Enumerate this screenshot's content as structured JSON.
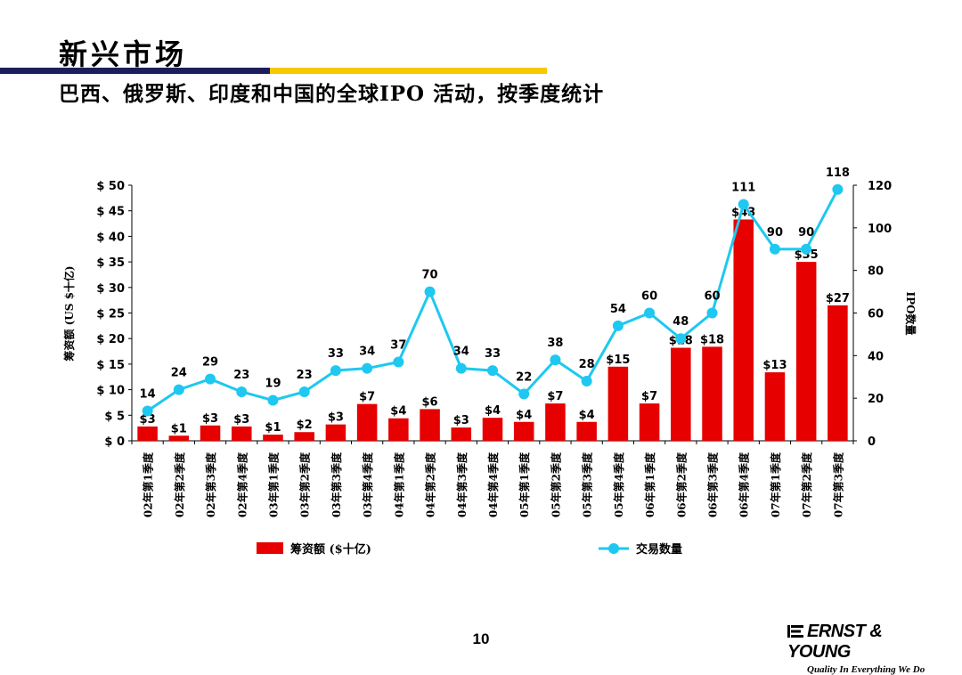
{
  "slide": {
    "title": "新兴市场",
    "subtitle": "巴西、俄罗斯、印度和中国的全球IPO 活动，按季度统计",
    "page_number": "10",
    "logo_text": "ERNST & YOUNG",
    "logo_tagline": "Quality In Everything We Do",
    "colors": {
      "navy_bar": "#1c1f5c",
      "gold_bar": "#f7c900",
      "bar": "#e60000",
      "line": "#1ec8f0"
    }
  },
  "chart_data": {
    "type": "bar",
    "categories": [
      "02年第1季度",
      "02年第2季度",
      "02年第3季度",
      "02年第4季度",
      "03年第1季度",
      "03年第2季度",
      "03年第3季度",
      "03年第4季度",
      "04年第1季度",
      "04年第2季度",
      "04年第3季度",
      "04年第4季度",
      "05年第1季度",
      "05年第2季度",
      "05年第3季度",
      "05年第4季度",
      "06年第1季度",
      "06年第2季度",
      "06年第3季度",
      "06年第4季度",
      "07年第1季度",
      "07年第2季度",
      "07年第3季度"
    ],
    "series": [
      {
        "name": "筹资额 ($十亿)",
        "type": "bar",
        "axis": "left",
        "values": [
          2.8,
          1.0,
          3.0,
          2.8,
          1.2,
          1.7,
          3.2,
          7.2,
          4.4,
          6.2,
          2.6,
          4.5,
          3.7,
          7.3,
          3.7,
          14.5,
          7.3,
          18.2,
          18.4,
          43.3,
          13.4,
          35.0,
          26.5
        ],
        "labels": [
          "$3",
          "$1",
          "$3",
          "$3",
          "$1",
          "$2",
          "$3",
          "$7",
          "$4",
          "$6",
          "$3",
          "$4",
          "$4",
          "$7",
          "$4",
          "$15",
          "$7",
          "$18",
          "$18",
          "$43",
          "$13",
          "$35",
          "$27"
        ]
      },
      {
        "name": "交易数量",
        "type": "line",
        "axis": "right",
        "values": [
          14,
          24,
          29,
          23,
          19,
          23,
          33,
          34,
          37,
          70,
          34,
          33,
          22,
          38,
          28,
          54,
          60,
          48,
          60,
          111,
          90,
          90,
          118
        ],
        "labels": [
          "14",
          "24",
          "29",
          "23",
          "19",
          "23",
          "33",
          "34",
          "37",
          "70",
          "34",
          "33",
          "22",
          "38",
          "28",
          "54",
          "60",
          "48",
          "60",
          "111",
          "90",
          "90",
          "118"
        ]
      }
    ],
    "ylabel": "筹资额 (US $十亿)",
    "y2label": "IPO数量",
    "ylim": [
      0,
      50
    ],
    "y2lim": [
      0,
      120
    ],
    "yticks": [
      "$ 0",
      "$ 5",
      "$ 10",
      "$ 15",
      "$ 20",
      "$ 25",
      "$ 30",
      "$ 35",
      "$ 40",
      "$ 45",
      "$ 50"
    ],
    "y2ticks": [
      "0",
      "20",
      "40",
      "60",
      "80",
      "100",
      "120"
    ],
    "grid": false,
    "legend_placement": "bottom"
  }
}
